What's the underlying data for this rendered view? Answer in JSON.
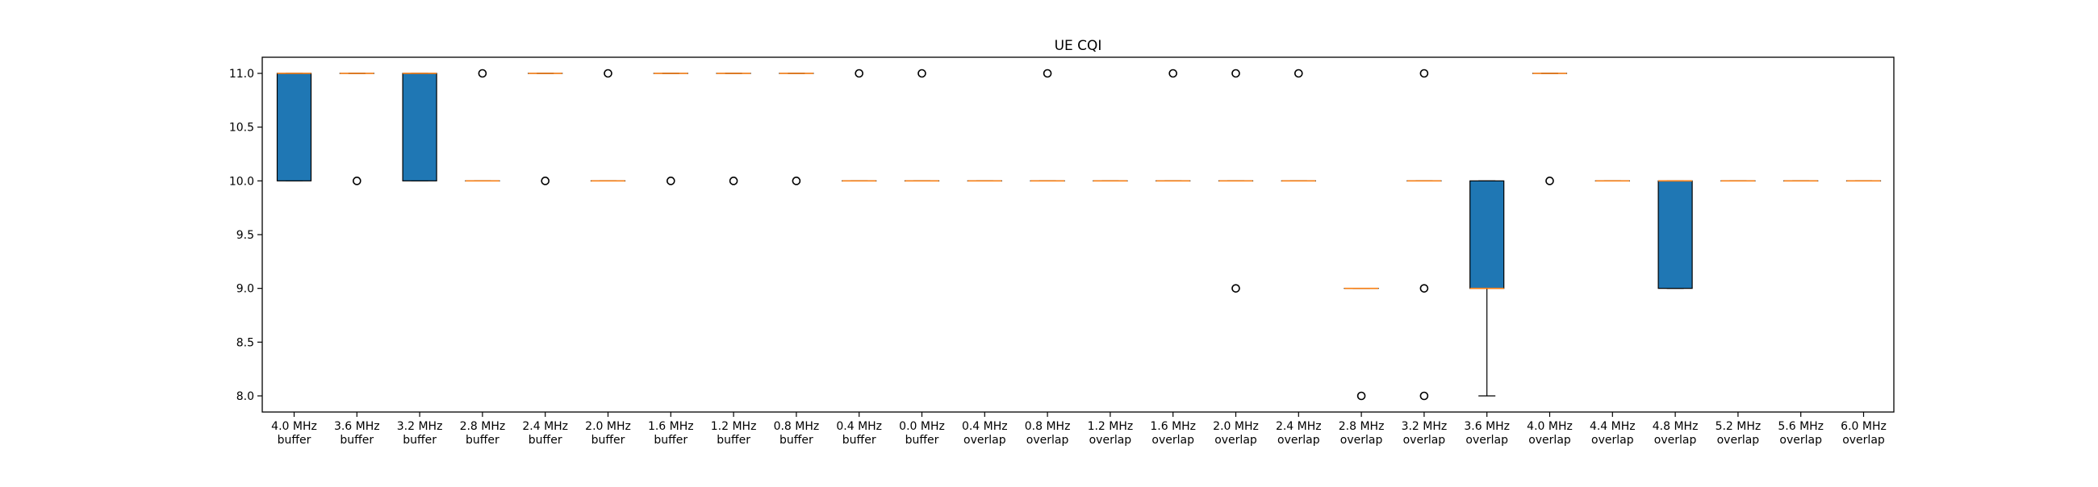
{
  "chart_data": {
    "type": "box",
    "title": "UE CQI",
    "xlabel": "",
    "ylabel": "",
    "ylim": [
      7.85,
      11.15
    ],
    "yticks": [
      8.0,
      8.5,
      9.0,
      9.5,
      10.0,
      10.5,
      11.0
    ],
    "ytick_labels": [
      "8.0",
      "8.5",
      "9.0",
      "9.5",
      "10.0",
      "10.5",
      "11.0"
    ],
    "grid": false,
    "box_color": "#1f77b4",
    "median_color": "#ff7f0e",
    "categories": [
      {
        "line1": "4.0 MHz",
        "line2": "buffer",
        "q1": 10,
        "median": 11,
        "q3": 11,
        "whisker_low": 10,
        "whisker_high": 11,
        "outliers": []
      },
      {
        "line1": "3.6 MHz",
        "line2": "buffer",
        "q1": 11,
        "median": 11,
        "q3": 11,
        "whisker_low": 11,
        "whisker_high": 11,
        "outliers": [
          10
        ]
      },
      {
        "line1": "3.2 MHz",
        "line2": "buffer",
        "q1": 10,
        "median": 11,
        "q3": 11,
        "whisker_low": 10,
        "whisker_high": 11,
        "outliers": []
      },
      {
        "line1": "2.8 MHz",
        "line2": "buffer",
        "q1": 10,
        "median": 10,
        "q3": 10,
        "whisker_low": 10,
        "whisker_high": 10,
        "outliers": [
          11
        ]
      },
      {
        "line1": "2.4 MHz",
        "line2": "buffer",
        "q1": 11,
        "median": 11,
        "q3": 11,
        "whisker_low": 11,
        "whisker_high": 11,
        "outliers": [
          10
        ]
      },
      {
        "line1": "2.0 MHz",
        "line2": "buffer",
        "q1": 10,
        "median": 10,
        "q3": 10,
        "whisker_low": 10,
        "whisker_high": 10,
        "outliers": [
          11
        ]
      },
      {
        "line1": "1.6 MHz",
        "line2": "buffer",
        "q1": 11,
        "median": 11,
        "q3": 11,
        "whisker_low": 11,
        "whisker_high": 11,
        "outliers": [
          10
        ]
      },
      {
        "line1": "1.2 MHz",
        "line2": "buffer",
        "q1": 11,
        "median": 11,
        "q3": 11,
        "whisker_low": 11,
        "whisker_high": 11,
        "outliers": [
          10
        ]
      },
      {
        "line1": "0.8 MHz",
        "line2": "buffer",
        "q1": 11,
        "median": 11,
        "q3": 11,
        "whisker_low": 11,
        "whisker_high": 11,
        "outliers": [
          10
        ]
      },
      {
        "line1": "0.4 MHz",
        "line2": "buffer",
        "q1": 10,
        "median": 10,
        "q3": 10,
        "whisker_low": 10,
        "whisker_high": 10,
        "outliers": [
          11
        ]
      },
      {
        "line1": "0.0 MHz",
        "line2": "buffer",
        "q1": 10,
        "median": 10,
        "q3": 10,
        "whisker_low": 10,
        "whisker_high": 10,
        "outliers": [
          11
        ]
      },
      {
        "line1": "0.4 MHz",
        "line2": "overlap",
        "q1": 10,
        "median": 10,
        "q3": 10,
        "whisker_low": 10,
        "whisker_high": 10,
        "outliers": []
      },
      {
        "line1": "0.8 MHz",
        "line2": "overlap",
        "q1": 10,
        "median": 10,
        "q3": 10,
        "whisker_low": 10,
        "whisker_high": 10,
        "outliers": [
          11
        ]
      },
      {
        "line1": "1.2 MHz",
        "line2": "overlap",
        "q1": 10,
        "median": 10,
        "q3": 10,
        "whisker_low": 10,
        "whisker_high": 10,
        "outliers": []
      },
      {
        "line1": "1.6 MHz",
        "line2": "overlap",
        "q1": 10,
        "median": 10,
        "q3": 10,
        "whisker_low": 10,
        "whisker_high": 10,
        "outliers": [
          11
        ]
      },
      {
        "line1": "2.0 MHz",
        "line2": "overlap",
        "q1": 10,
        "median": 10,
        "q3": 10,
        "whisker_low": 10,
        "whisker_high": 10,
        "outliers": [
          11,
          9
        ]
      },
      {
        "line1": "2.4 MHz",
        "line2": "overlap",
        "q1": 10,
        "median": 10,
        "q3": 10,
        "whisker_low": 10,
        "whisker_high": 10,
        "outliers": [
          11
        ]
      },
      {
        "line1": "2.8 MHz",
        "line2": "overlap",
        "q1": 9,
        "median": 9,
        "q3": 9,
        "whisker_low": 9,
        "whisker_high": 9,
        "outliers": [
          8
        ]
      },
      {
        "line1": "3.2 MHz",
        "line2": "overlap",
        "q1": 10,
        "median": 10,
        "q3": 10,
        "whisker_low": 10,
        "whisker_high": 10,
        "outliers": [
          11,
          9,
          8
        ]
      },
      {
        "line1": "3.6 MHz",
        "line2": "overlap",
        "q1": 9,
        "median": 9,
        "q3": 10,
        "whisker_low": 8,
        "whisker_high": 10,
        "outliers": []
      },
      {
        "line1": "4.0 MHz",
        "line2": "overlap",
        "q1": 11,
        "median": 11,
        "q3": 11,
        "whisker_low": 11,
        "whisker_high": 11,
        "outliers": [
          10
        ]
      },
      {
        "line1": "4.4 MHz",
        "line2": "overlap",
        "q1": 10,
        "median": 10,
        "q3": 10,
        "whisker_low": 10,
        "whisker_high": 10,
        "outliers": []
      },
      {
        "line1": "4.8 MHz",
        "line2": "overlap",
        "q1": 9,
        "median": 10,
        "q3": 10,
        "whisker_low": 9,
        "whisker_high": 10,
        "outliers": []
      },
      {
        "line1": "5.2 MHz",
        "line2": "overlap",
        "q1": 10,
        "median": 10,
        "q3": 10,
        "whisker_low": 10,
        "whisker_high": 10,
        "outliers": []
      },
      {
        "line1": "5.6 MHz",
        "line2": "overlap",
        "q1": 10,
        "median": 10,
        "q3": 10,
        "whisker_low": 10,
        "whisker_high": 10,
        "outliers": []
      },
      {
        "line1": "6.0 MHz",
        "line2": "overlap",
        "q1": 10,
        "median": 10,
        "q3": 10,
        "whisker_low": 10,
        "whisker_high": 10,
        "outliers": []
      }
    ]
  }
}
